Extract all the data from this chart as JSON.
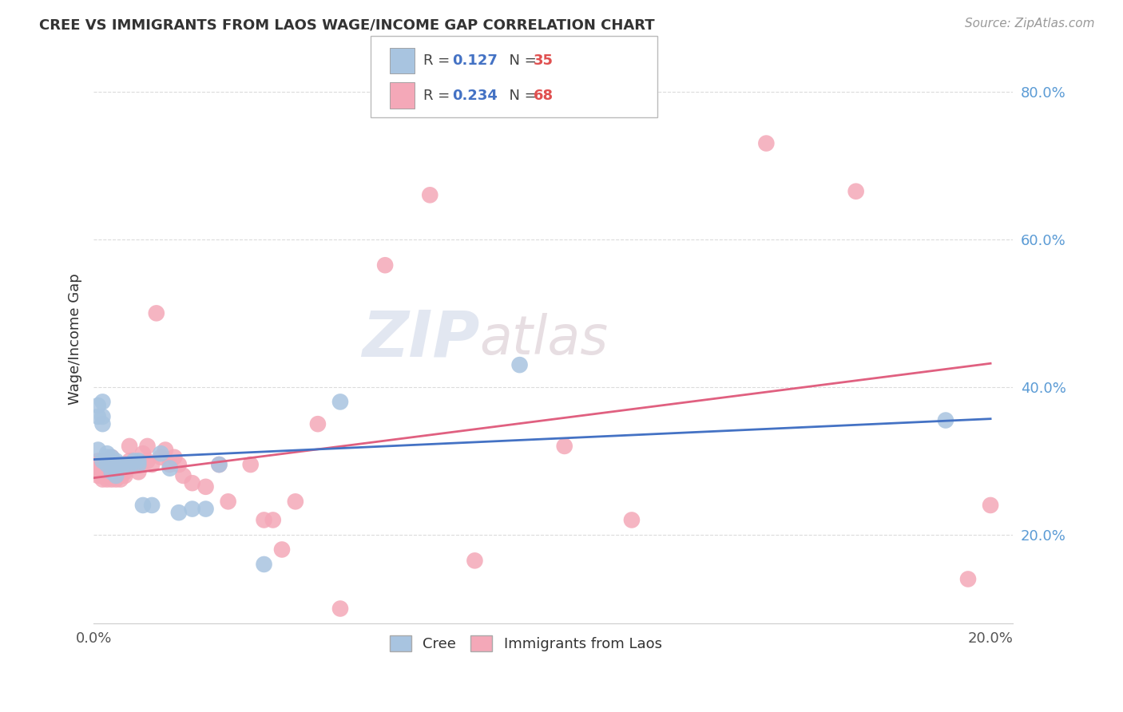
{
  "title": "CREE VS IMMIGRANTS FROM LAOS WAGE/INCOME GAP CORRELATION CHART",
  "source": "Source: ZipAtlas.com",
  "ylabel": "Wage/Income Gap",
  "xlim": [
    0.0,
    0.205
  ],
  "ylim": [
    0.08,
    0.85
  ],
  "yticks": [
    0.2,
    0.4,
    0.6,
    0.8
  ],
  "ytick_labels": [
    "20.0%",
    "40.0%",
    "60.0%",
    "80.0%"
  ],
  "xticks": [
    0.0,
    0.05,
    0.1,
    0.15,
    0.2
  ],
  "xtick_labels": [
    "0.0%",
    "",
    "",
    "",
    "20.0%"
  ],
  "background_color": "#ffffff",
  "grid_color": "#cccccc",
  "watermark_zip": "ZIP",
  "watermark_atlas": "atlas",
  "legend_R_blue": "0.127",
  "legend_N_blue": "35",
  "legend_R_pink": "0.234",
  "legend_N_pink": "68",
  "cree_color": "#a8c4e0",
  "laos_color": "#f4a8b8",
  "cree_line_color": "#4472c4",
  "laos_line_color": "#e06080",
  "cree_scatter_x": [
    0.001,
    0.001,
    0.001,
    0.002,
    0.002,
    0.002,
    0.002,
    0.003,
    0.003,
    0.003,
    0.003,
    0.004,
    0.004,
    0.004,
    0.005,
    0.005,
    0.005,
    0.006,
    0.007,
    0.008,
    0.009,
    0.01,
    0.01,
    0.011,
    0.013,
    0.015,
    0.017,
    0.019,
    0.022,
    0.025,
    0.028,
    0.038,
    0.055,
    0.095,
    0.19
  ],
  "cree_scatter_y": [
    0.315,
    0.36,
    0.375,
    0.3,
    0.35,
    0.36,
    0.38,
    0.295,
    0.3,
    0.305,
    0.31,
    0.285,
    0.295,
    0.305,
    0.28,
    0.29,
    0.3,
    0.295,
    0.295,
    0.295,
    0.3,
    0.295,
    0.3,
    0.24,
    0.24,
    0.31,
    0.29,
    0.23,
    0.235,
    0.235,
    0.295,
    0.16,
    0.38,
    0.43,
    0.355
  ],
  "laos_scatter_x": [
    0.001,
    0.001,
    0.001,
    0.001,
    0.001,
    0.002,
    0.002,
    0.002,
    0.002,
    0.002,
    0.002,
    0.003,
    0.003,
    0.003,
    0.003,
    0.003,
    0.003,
    0.004,
    0.004,
    0.004,
    0.004,
    0.004,
    0.005,
    0.005,
    0.005,
    0.006,
    0.006,
    0.006,
    0.007,
    0.007,
    0.007,
    0.008,
    0.008,
    0.009,
    0.009,
    0.01,
    0.01,
    0.011,
    0.012,
    0.012,
    0.013,
    0.014,
    0.015,
    0.016,
    0.017,
    0.018,
    0.019,
    0.02,
    0.022,
    0.025,
    0.028,
    0.03,
    0.035,
    0.038,
    0.04,
    0.042,
    0.045,
    0.05,
    0.055,
    0.065,
    0.075,
    0.085,
    0.105,
    0.12,
    0.15,
    0.17,
    0.195,
    0.2
  ],
  "laos_scatter_y": [
    0.28,
    0.285,
    0.29,
    0.295,
    0.3,
    0.275,
    0.28,
    0.285,
    0.29,
    0.295,
    0.3,
    0.275,
    0.28,
    0.285,
    0.29,
    0.295,
    0.3,
    0.275,
    0.28,
    0.285,
    0.295,
    0.305,
    0.275,
    0.28,
    0.29,
    0.275,
    0.285,
    0.295,
    0.28,
    0.285,
    0.295,
    0.3,
    0.32,
    0.295,
    0.3,
    0.285,
    0.295,
    0.31,
    0.3,
    0.32,
    0.295,
    0.5,
    0.305,
    0.315,
    0.295,
    0.305,
    0.295,
    0.28,
    0.27,
    0.265,
    0.295,
    0.245,
    0.295,
    0.22,
    0.22,
    0.18,
    0.245,
    0.35,
    0.1,
    0.565,
    0.66,
    0.165,
    0.32,
    0.22,
    0.73,
    0.665,
    0.14,
    0.24
  ],
  "cree_line_x0": 0.0,
  "cree_line_y0": 0.302,
  "cree_line_x1": 0.2,
  "cree_line_y1": 0.357,
  "laos_line_x0": 0.0,
  "laos_line_y0": 0.277,
  "laos_line_x1": 0.2,
  "laos_line_y1": 0.432
}
